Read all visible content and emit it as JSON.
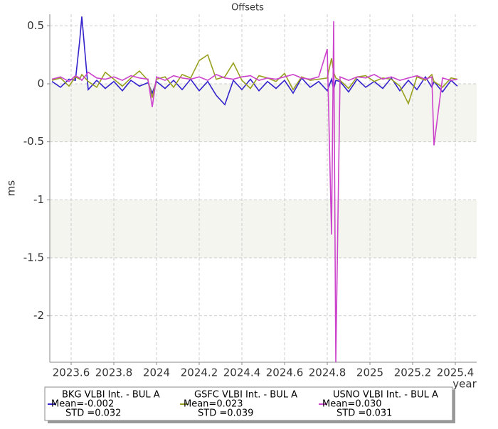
{
  "chart_data": {
    "type": "line",
    "title": "Offsets",
    "xlabel": "year",
    "ylabel": "ms",
    "x": [
      2023.51,
      2023.55,
      2023.59,
      2023.62,
      2023.64,
      2023.65,
      2023.68,
      2023.72,
      2023.76,
      2023.8,
      2023.84,
      2023.88,
      2023.92,
      2023.96,
      2023.98,
      2024.0,
      2024.04,
      2024.08,
      2024.12,
      2024.16,
      2024.2,
      2024.24,
      2024.28,
      2024.32,
      2024.36,
      2024.4,
      2024.44,
      2024.48,
      2024.52,
      2024.56,
      2024.6,
      2024.64,
      2024.68,
      2024.72,
      2024.76,
      2024.8,
      2024.82,
      2024.83,
      2024.84,
      2024.86,
      2024.9,
      2024.94,
      2024.98,
      2025.02,
      2025.06,
      2025.1,
      2025.14,
      2025.18,
      2025.22,
      2025.26,
      2025.29,
      2025.3,
      2025.34,
      2025.38,
      2025.41
    ],
    "series": [
      {
        "name": "BKG VLBI Int. - BUL A",
        "mean": "Mean=-0.002",
        "std": "STD =0.032",
        "color": "#3322cc",
        "values": [
          0.02,
          -0.03,
          0.04,
          0.03,
          0.37,
          0.58,
          -0.05,
          0.03,
          -0.04,
          0.02,
          -0.06,
          0.03,
          -0.02,
          0.01,
          -0.08,
          0.02,
          -0.04,
          0.03,
          -0.05,
          0.04,
          -0.06,
          0.02,
          -0.1,
          -0.18,
          0.03,
          -0.05,
          0.04,
          -0.06,
          0.02,
          -0.04,
          0.03,
          -0.08,
          0.05,
          -0.03,
          0.02,
          -0.06,
          0.04,
          -0.05,
          0.03,
          0.02,
          -0.07,
          0.04,
          -0.03,
          0.02,
          -0.04,
          0.05,
          -0.06,
          0.03,
          -0.05,
          0.06,
          -0.03,
          0.02,
          -0.07,
          0.03,
          -0.02
        ]
      },
      {
        "name": "GSFC VLBI Int. - BUL A",
        "mean": "Mean=0.023",
        "std": "STD =0.039",
        "color": "#99a020",
        "values": [
          0.03,
          0.05,
          -0.02,
          0.06,
          0.04,
          0.08,
          0.02,
          -0.03,
          0.1,
          0.04,
          -0.02,
          0.05,
          0.11,
          0.03,
          -0.12,
          0.04,
          0.06,
          -0.03,
          0.08,
          0.05,
          0.2,
          0.25,
          0.04,
          0.06,
          0.18,
          0.03,
          -0.04,
          0.07,
          0.05,
          0.02,
          0.09,
          -0.05,
          0.06,
          0.03,
          0.04,
          0.05,
          0.22,
          0.1,
          0.05,
          0.03,
          -0.04,
          0.06,
          0.07,
          0.02,
          0.05,
          0.04,
          -0.02,
          -0.17,
          0.06,
          0.03,
          0.08,
          0.02,
          -0.03,
          0.05,
          0.04
        ]
      },
      {
        "name": "USNO VLBI Int. - BUL A",
        "mean": "Mean=0.030",
        "std": "STD =0.031",
        "color": "#cc44cc",
        "values": [
          0.04,
          0.06,
          0.02,
          0.07,
          0.05,
          0.03,
          0.1,
          0.05,
          0.04,
          0.06,
          0.03,
          0.07,
          0.05,
          0.04,
          -0.2,
          0.06,
          0.03,
          0.07,
          0.05,
          0.04,
          0.06,
          0.03,
          0.08,
          0.05,
          0.04,
          0.06,
          0.07,
          0.03,
          0.05,
          0.04,
          0.06,
          0.08,
          0.05,
          0.04,
          0.06,
          0.3,
          -1.3,
          0.54,
          -2.4,
          0.06,
          0.03,
          0.06,
          0.05,
          0.08,
          0.04,
          0.06,
          0.03,
          0.05,
          0.07,
          0.04,
          0.06,
          -0.53,
          0.05,
          0.03,
          0.04
        ]
      }
    ],
    "xlim": [
      2023.5,
      2025.5
    ],
    "ylim": [
      -2.4,
      0.6
    ],
    "xticks": [
      2023.6,
      2023.8,
      2024,
      2024.2,
      2024.4,
      2024.6,
      2024.8,
      2025,
      2025.2,
      2025.4
    ],
    "yticks": [
      0.5,
      0,
      -0.5,
      -1,
      -1.5,
      -2
    ],
    "grid": true
  }
}
